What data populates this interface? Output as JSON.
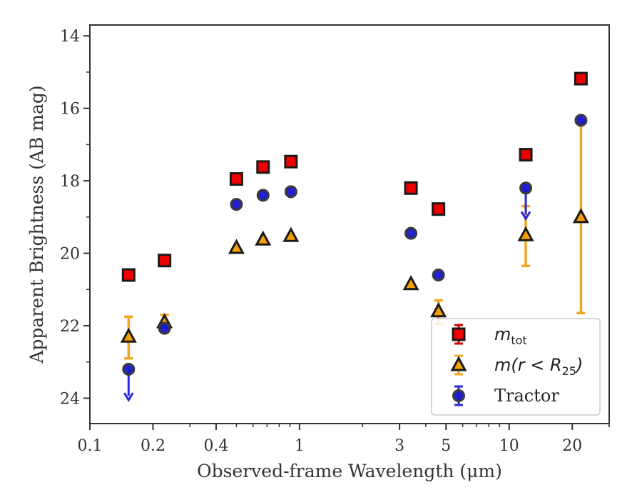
{
  "chart_data": {
    "type": "scatter",
    "xlabel": "Observed-frame Wavelength (μm)",
    "ylabel": "Apparent Brightness (AB mag)",
    "xscale": "log",
    "xlim": [
      0.1,
      30
    ],
    "ylim": [
      24.7,
      13.7
    ],
    "y_inverted": true,
    "x_ticks": [
      0.1,
      0.2,
      0.4,
      1,
      3,
      5,
      10,
      20
    ],
    "x_tick_labels": [
      "0.1",
      "0.2",
      "0.4",
      "1",
      "3",
      "5",
      "10",
      "20"
    ],
    "y_ticks": [
      14,
      16,
      18,
      20,
      22,
      24
    ],
    "y_tick_labels": [
      "14",
      "16",
      "18",
      "20",
      "22",
      "24"
    ],
    "legend_position": "lower-right",
    "series": [
      {
        "name": "m_tot",
        "legend_label": {
          "main": "m",
          "sub": "tot"
        },
        "marker": "square",
        "color": "#ee0000",
        "edge_color": "#1a1a1a",
        "errorbar_color": "#d00000",
        "points": [
          {
            "x": 0.153,
            "y": 20.6
          },
          {
            "x": 0.227,
            "y": 20.2
          },
          {
            "x": 0.5,
            "y": 17.95
          },
          {
            "x": 0.67,
            "y": 17.62
          },
          {
            "x": 0.91,
            "y": 17.47
          },
          {
            "x": 3.4,
            "y": 18.2
          },
          {
            "x": 4.6,
            "y": 18.78
          },
          {
            "x": 12.0,
            "y": 17.28
          },
          {
            "x": 22.0,
            "y": 15.18
          }
        ]
      },
      {
        "name": "m(r<R25)",
        "legend_label": {
          "main": "m(r < R",
          "sub": "25",
          "tail": ")"
        },
        "marker": "triangle",
        "color": "#f5a000",
        "edge_color": "#1a1a1a",
        "errorbar_color": "#f5a623",
        "points": [
          {
            "x": 0.153,
            "y": 22.3,
            "err_low": 21.75,
            "err_high": 22.9
          },
          {
            "x": 0.227,
            "y": 21.9,
            "err_low": 21.7,
            "err_high": 22.1
          },
          {
            "x": 0.5,
            "y": 19.85
          },
          {
            "x": 0.67,
            "y": 19.62
          },
          {
            "x": 0.91,
            "y": 19.52
          },
          {
            "x": 3.4,
            "y": 20.85
          },
          {
            "x": 4.6,
            "y": 21.6,
            "err_low": 21.3,
            "err_high": 21.95
          },
          {
            "x": 12.0,
            "y": 19.5,
            "err_low": 18.7,
            "err_high": 20.35
          },
          {
            "x": 22.0,
            "y": 19.0,
            "err_low": 16.4,
            "err_high": 21.65
          }
        ]
      },
      {
        "name": "Tractor",
        "legend_label": {
          "main": "Tractor"
        },
        "marker": "circle",
        "color": "#1515cc",
        "edge_color": "#3a3a3a",
        "errorbar_color": "#2a2ae0",
        "points": [
          {
            "x": 0.153,
            "y": 23.2,
            "upper_limit": true
          },
          {
            "x": 0.227,
            "y": 22.07
          },
          {
            "x": 0.5,
            "y": 18.65
          },
          {
            "x": 0.67,
            "y": 18.4
          },
          {
            "x": 0.91,
            "y": 18.3
          },
          {
            "x": 3.4,
            "y": 19.45
          },
          {
            "x": 4.6,
            "y": 20.6
          },
          {
            "x": 12.0,
            "y": 18.2,
            "upper_limit": true
          },
          {
            "x": 22.0,
            "y": 16.33
          }
        ]
      }
    ]
  }
}
